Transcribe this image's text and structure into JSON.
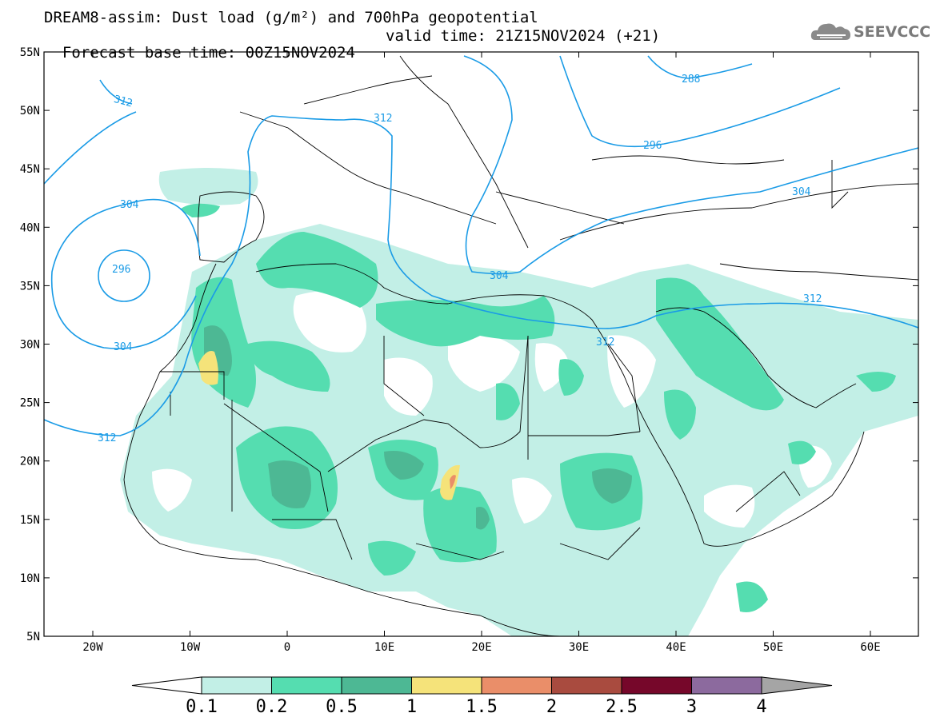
{
  "title": {
    "line1": "DREAM8-assim: Dust load (g/m²) and 700hPa geopotential",
    "line2_base": "Forecast base time: 00Z15NOV2024",
    "line2_valid": "valid time: 21Z15NOV2024 (+21)"
  },
  "logo": {
    "text": "SEEVCCC",
    "icon": "cloud-logo-icon"
  },
  "axes": {
    "lat_labels": [
      "55N",
      "50N",
      "45N",
      "40N",
      "35N",
      "30N",
      "25N",
      "20N",
      "15N",
      "10N",
      "5N"
    ],
    "lon_labels": [
      "20W",
      "10W",
      "0",
      "10E",
      "20E",
      "30E",
      "40E",
      "50E",
      "60E"
    ]
  },
  "contour_labels": [
    "312",
    "312",
    "288",
    "296",
    "304",
    "304",
    "296",
    "304",
    "312",
    "312",
    "312",
    "304"
  ],
  "colorbar": {
    "ticks": [
      "0.1",
      "0.2",
      "0.5",
      "1",
      "1.5",
      "2",
      "2.5",
      "3",
      "4"
    ],
    "colors": [
      "#c2efe6",
      "#55ddb0",
      "#4db894",
      "#f5e37a",
      "#ea8e69",
      "#a94b3f",
      "#76072a",
      "#8c6a9e"
    ],
    "under_color": "#ffffff",
    "over_color": "#a5a5a5"
  },
  "colors": {
    "contour": "#1a9be6",
    "border": "#000000"
  }
}
